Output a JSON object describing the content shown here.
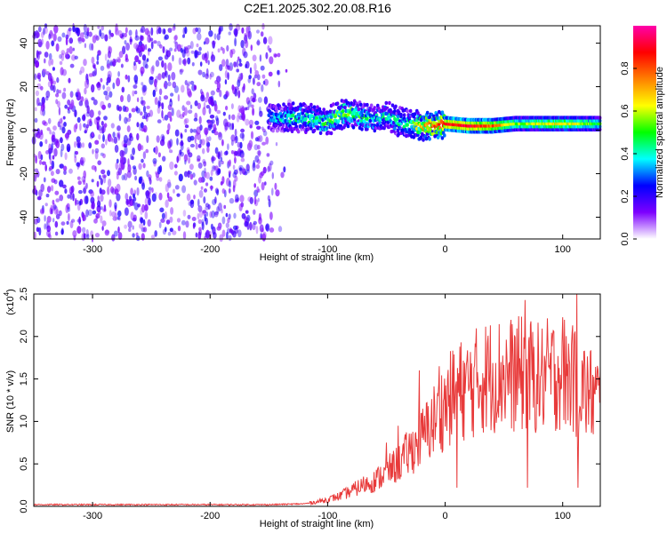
{
  "chart_data": [
    {
      "type": "heatmap",
      "title": "C2E1.2025.302.20.08.R16",
      "xlabel": "Height of straight line (km)",
      "ylabel": "Frequency (Hz)",
      "xlim": [
        -350,
        132
      ],
      "ylim": [
        -50,
        48
      ],
      "x_ticks": [
        "-300",
        "-200",
        "-100",
        "0",
        "100"
      ],
      "x_tick_values": [
        -300,
        -200,
        -100,
        0,
        100
      ],
      "y_ticks": [
        "-40",
        "-20",
        "0",
        "20",
        "40"
      ],
      "y_tick_values": [
        -40,
        -20,
        0,
        20,
        40
      ],
      "ridge": {
        "x": [
          -150,
          -130,
          -110,
          -100,
          -90,
          -80,
          -70,
          -60,
          -50,
          -40,
          -30,
          -20,
          -10,
          0,
          20,
          40,
          60,
          80,
          100,
          120,
          132
        ],
        "frequency": [
          6,
          6,
          5,
          4,
          7,
          8,
          6,
          5,
          7,
          4,
          3,
          2,
          2,
          3,
          2,
          2,
          3,
          3,
          3,
          3,
          3
        ],
        "peak_amplitude": [
          0.35,
          0.4,
          0.45,
          0.5,
          0.55,
          0.5,
          0.45,
          0.4,
          0.4,
          0.4,
          0.45,
          0.7,
          0.8,
          0.85,
          0.9,
          0.8,
          0.55,
          0.6,
          0.65,
          0.55,
          0.5
        ]
      },
      "colorbar": {
        "label": "Normalized spectral amplitude",
        "range": [
          0,
          1
        ],
        "ticks": [
          "0.0",
          "0.2",
          "0.4",
          "0.6",
          "0.8"
        ],
        "tick_values": [
          0,
          0.2,
          0.4,
          0.6,
          0.8
        ],
        "colormap": [
          "#ffffff",
          "#7d00ff",
          "#0000ff",
          "#00ffff",
          "#00ff00",
          "#ffff00",
          "#ff8000",
          "#ff0000",
          "#ff00aa"
        ]
      }
    },
    {
      "type": "line",
      "xlabel": "Height of straight line (km)",
      "ylabel": "SNR (10 * v/v)",
      "y_multiplier": "(x10",
      "y_multiplier_exp": "4",
      "y_multiplier_close": ")",
      "xlim": [
        -350,
        132
      ],
      "ylim": [
        0,
        2.5
      ],
      "x_ticks": [
        "-300",
        "-200",
        "-100",
        "0",
        "100"
      ],
      "x_tick_values": [
        -300,
        -200,
        -100,
        0,
        100
      ],
      "y_ticks": [
        "0.0",
        "0.5",
        "1.0",
        "1.5",
        "2.0",
        "2.5"
      ],
      "y_tick_values": [
        0,
        0.5,
        1.0,
        1.5,
        2.0,
        2.5
      ],
      "color": "#e83a3a",
      "series": [
        {
          "x": [
            -350,
            -300,
            -250,
            -200,
            -150,
            -120,
            -110,
            -100,
            -90,
            -80,
            -70,
            -60,
            -50,
            -40,
            -30,
            -20,
            -10,
            0,
            10,
            20,
            30,
            40,
            50,
            60,
            70,
            80,
            90,
            100,
            110,
            120,
            132
          ],
          "values": [
            0.02,
            0.02,
            0.02,
            0.02,
            0.02,
            0.03,
            0.05,
            0.08,
            0.12,
            0.18,
            0.25,
            0.3,
            0.4,
            0.5,
            0.65,
            0.8,
            1.0,
            1.2,
            1.35,
            1.4,
            1.5,
            1.55,
            1.55,
            1.55,
            1.55,
            1.5,
            1.55,
            1.6,
            1.45,
            1.35,
            1.25
          ]
        }
      ],
      "spikes": [
        {
          "x": -50,
          "value": 0.75
        },
        {
          "x": -40,
          "value": 0.95
        },
        {
          "x": -22,
          "value": 1.6
        },
        {
          "x": -5,
          "value": 1.65
        },
        {
          "x": 10,
          "value": 0.22
        },
        {
          "x": 68,
          "value": 2.43
        },
        {
          "x": 70,
          "value": 0.22
        },
        {
          "x": 82,
          "value": 1.7
        },
        {
          "x": 108,
          "value": 2.05
        },
        {
          "x": 112,
          "value": 2.55
        },
        {
          "x": 113,
          "value": 0.22
        }
      ]
    }
  ]
}
